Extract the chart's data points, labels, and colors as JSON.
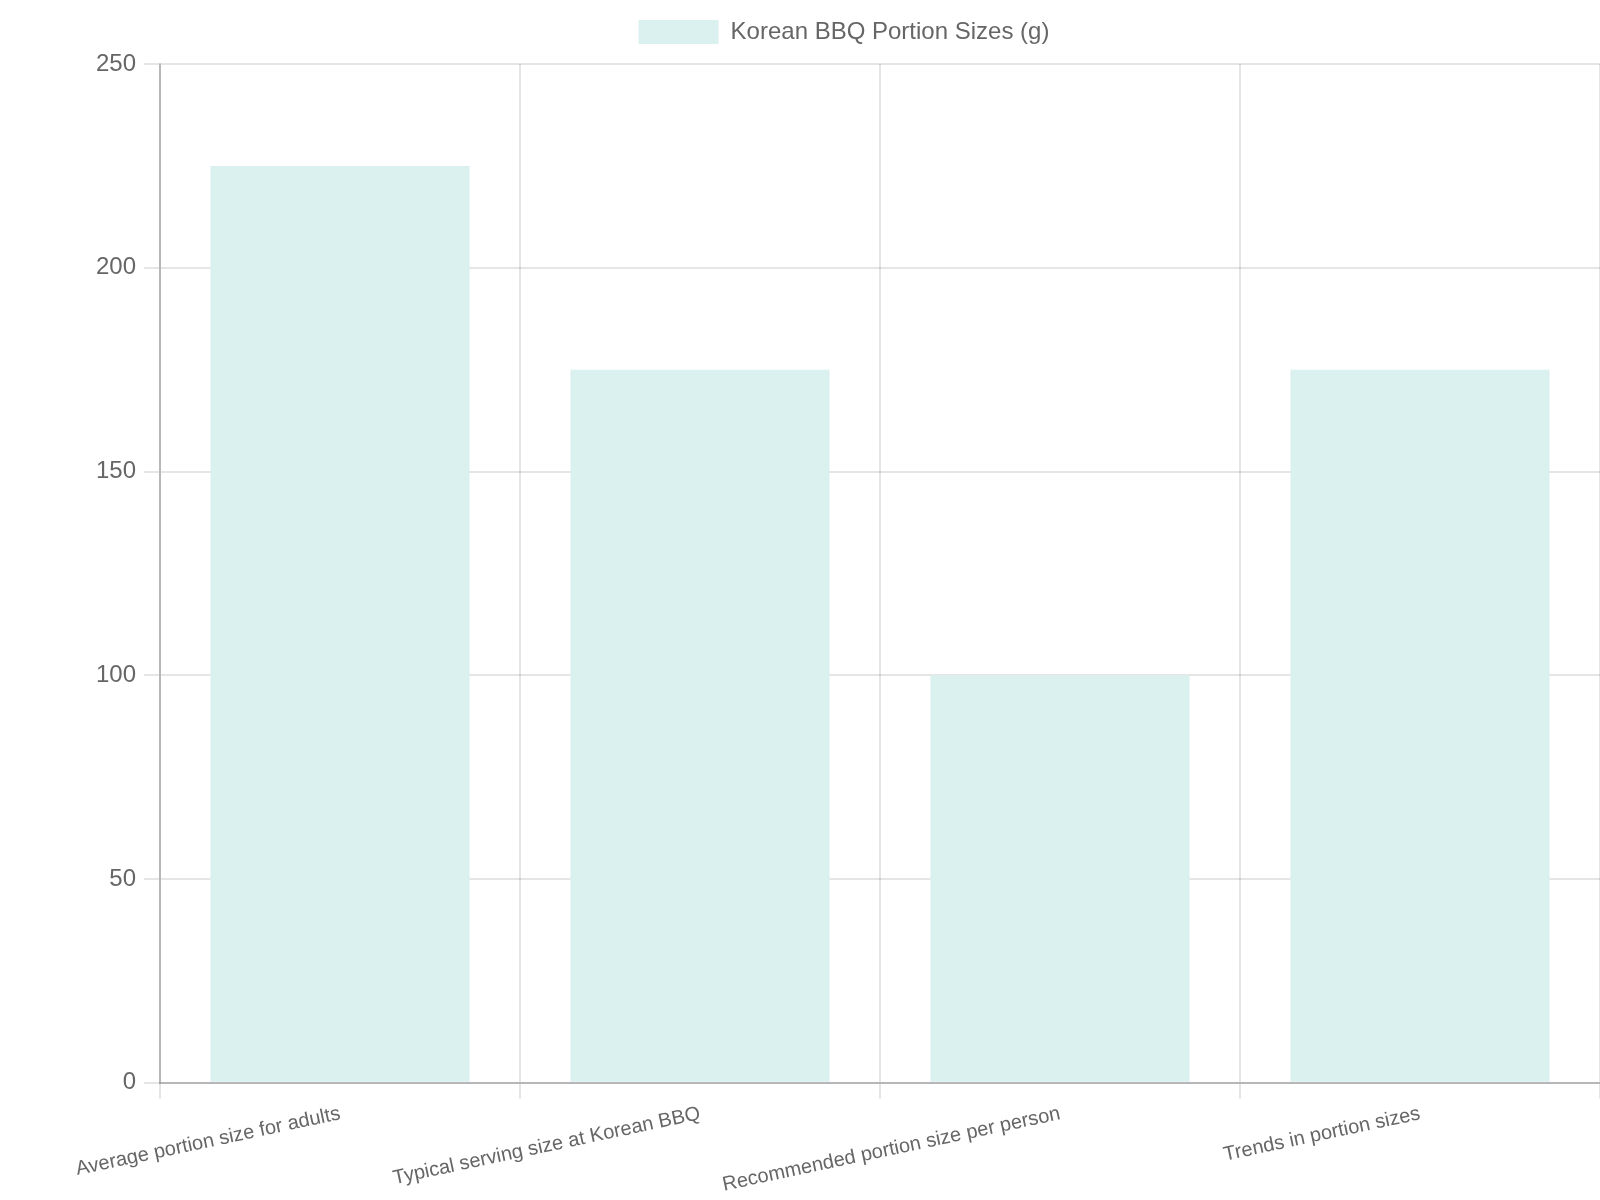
{
  "chart_data": {
    "type": "bar",
    "categories": [
      "Average portion size for adults",
      "Typical serving size at Korean BBQ",
      "Recommended portion size per person",
      "Trends in portion sizes"
    ],
    "series": [
      {
        "name": "Korean BBQ Portion Sizes (g)",
        "color": "#dbf1ef",
        "values": [
          225,
          175,
          100,
          175
        ]
      }
    ],
    "ylim": [
      0,
      250
    ],
    "yticks": [
      0,
      50,
      100,
      150,
      200,
      250
    ],
    "grid": true,
    "legend": "top"
  }
}
